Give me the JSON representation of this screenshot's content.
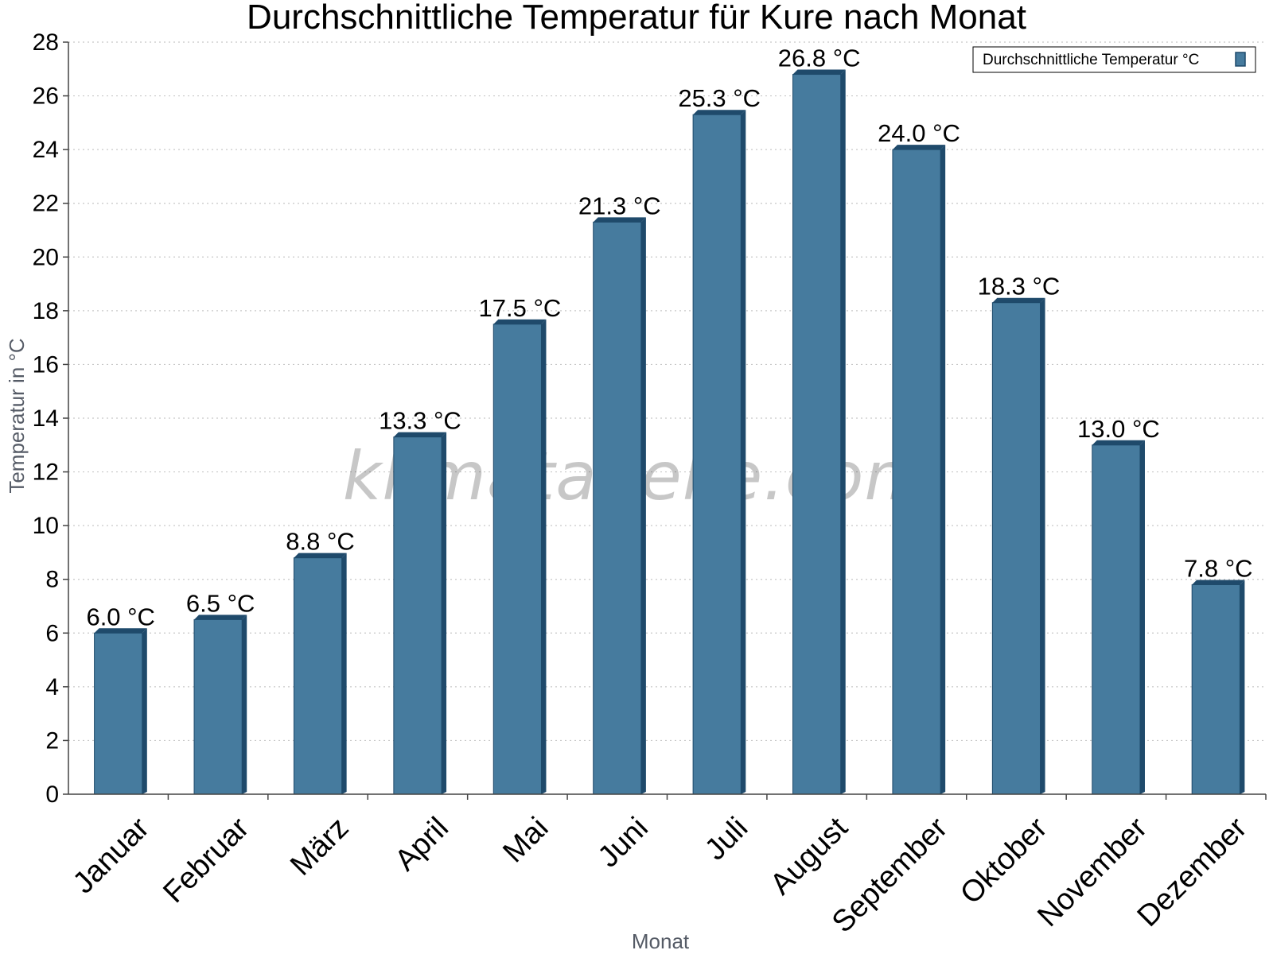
{
  "chart_data": {
    "type": "bar",
    "title": "Durchschnittliche Temperatur für Kure nach Monat",
    "xlabel": "Monat",
    "ylabel": "Temperatur in °C",
    "ylim": [
      0,
      28
    ],
    "yticks": [
      "0",
      "2",
      "4",
      "6",
      "8",
      "10",
      "12",
      "14",
      "16",
      "18",
      "20",
      "22",
      "24",
      "26",
      "28"
    ],
    "grid": true,
    "legend": {
      "position": "top-right",
      "entries": [
        "Durchschnittliche Temperatur °C"
      ]
    },
    "categories": [
      "Januar",
      "Februar",
      "März",
      "April",
      "Mai",
      "Juni",
      "Juli",
      "August",
      "September",
      "Oktober",
      "November",
      "Dezember"
    ],
    "series": [
      {
        "name": "Durchschnittliche Temperatur °C",
        "values": [
          6.0,
          6.5,
          8.8,
          13.3,
          17.5,
          21.3,
          25.3,
          26.8,
          24.0,
          18.3,
          13.0,
          7.8
        ],
        "labels": [
          "6.0 °C",
          "6.5 °C",
          "8.8 °C",
          "13.3 °C",
          "17.5 °C",
          "21.3 °C",
          "25.3 °C",
          "26.8 °C",
          "24.0 °C",
          "18.3 °C",
          "13.0 °C",
          "7.8 °C"
        ],
        "color": "#467b9e",
        "edge_color": "#1f4a6b"
      }
    ],
    "watermark": "klimatabelle.com"
  }
}
